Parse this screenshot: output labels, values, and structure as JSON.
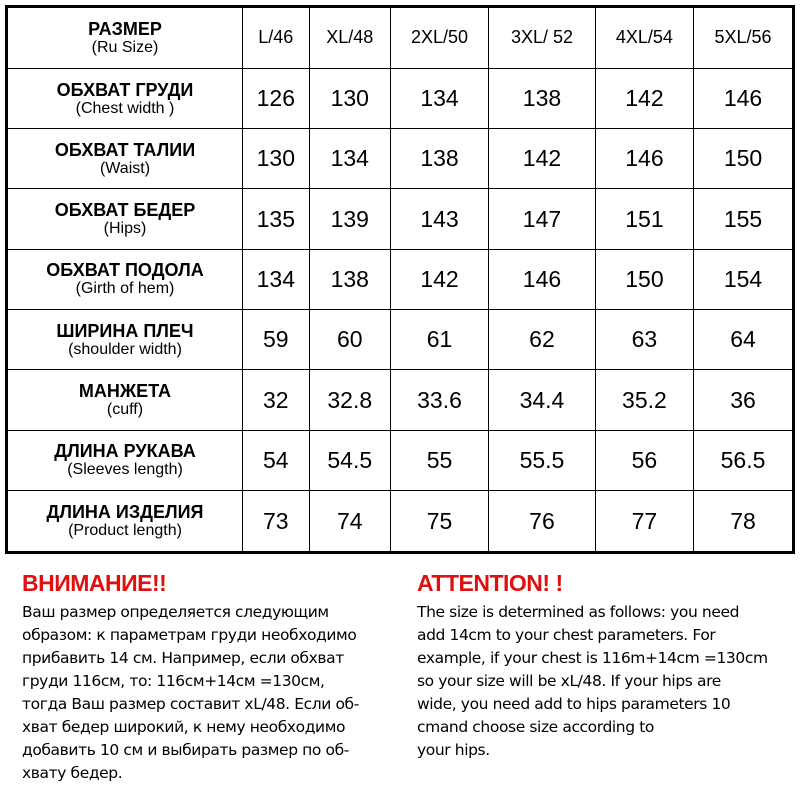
{
  "header": {
    "ru": "РАЗМЕР",
    "en": "(Ru Size)",
    "sizes": [
      "L/46",
      "XL/48",
      "2XL/50",
      "3XL/ 52",
      "4XL/54",
      "5XL/56"
    ]
  },
  "rows": [
    {
      "ru": "ОБХВАТ ГРУДИ",
      "en": "(Chest width )",
      "values": [
        "126",
        "130",
        "134",
        "138",
        "142",
        "146"
      ]
    },
    {
      "ru": "ОБХВАТ ТАЛИИ",
      "en": "(Waist)",
      "values": [
        "130",
        "134",
        "138",
        "142",
        "146",
        "150"
      ]
    },
    {
      "ru": "ОБХВАТ БЕДЕР",
      "en": "(Hips)",
      "values": [
        "135",
        "139",
        "143",
        "147",
        "151",
        "155"
      ]
    },
    {
      "ru": "ОБХВАТ ПОДОЛА",
      "en": "(Girth of hem)",
      "values": [
        "134",
        "138",
        "142",
        "146",
        "150",
        "154"
      ]
    },
    {
      "ru": "ШИРИНА ПЛЕЧ",
      "en": "(shoulder width)",
      "values": [
        "59",
        "60",
        "61",
        "62",
        "63",
        "64"
      ]
    },
    {
      "ru": "МАНЖЕТА",
      "en": "(cuff)",
      "values": [
        "32",
        "32.8",
        "33.6",
        "34.4",
        "35.2",
        "36"
      ]
    },
    {
      "ru": "ДЛИНА РУКАВА",
      "en": "(Sleeves length)",
      "values": [
        "54",
        "54.5",
        "55",
        "55.5",
        "56",
        "56.5"
      ]
    },
    {
      "ru": "ДЛИНА ИЗДЕЛИЯ",
      "en": "(Product length)",
      "values": [
        "73",
        "74",
        "75",
        "76",
        "77",
        "78"
      ]
    }
  ],
  "notes": {
    "ru": {
      "title": "ВНИМАНИЕ!!",
      "lines": [
        "Ваш размер определяется следующим",
        "образом: к параметрам груди необходимо",
        "прибавить 14 см. Например, если обхват",
        "груди  116см, то: 116см+14см =130см,",
        "тогда Ваш размер составит xL/48. Если об-",
        "хват бедер широкий, к нему необходимо",
        "добавить 10 см и выбирать размер по об-",
        "хвату бедер."
      ]
    },
    "en": {
      "title": "ATTENTION! !",
      "lines": [
        "The size is determined as follows: you need",
        "add 14cm to your chest parameters. For",
        "example, if your chest is 116m+14cm =130cm",
        "so your size will be xL/48. If your hips are",
        "wide, you need add to hips parameters 10",
        "cmand choose size according to",
        "your hips."
      ]
    }
  },
  "colors": {
    "attention": "#e01010"
  }
}
